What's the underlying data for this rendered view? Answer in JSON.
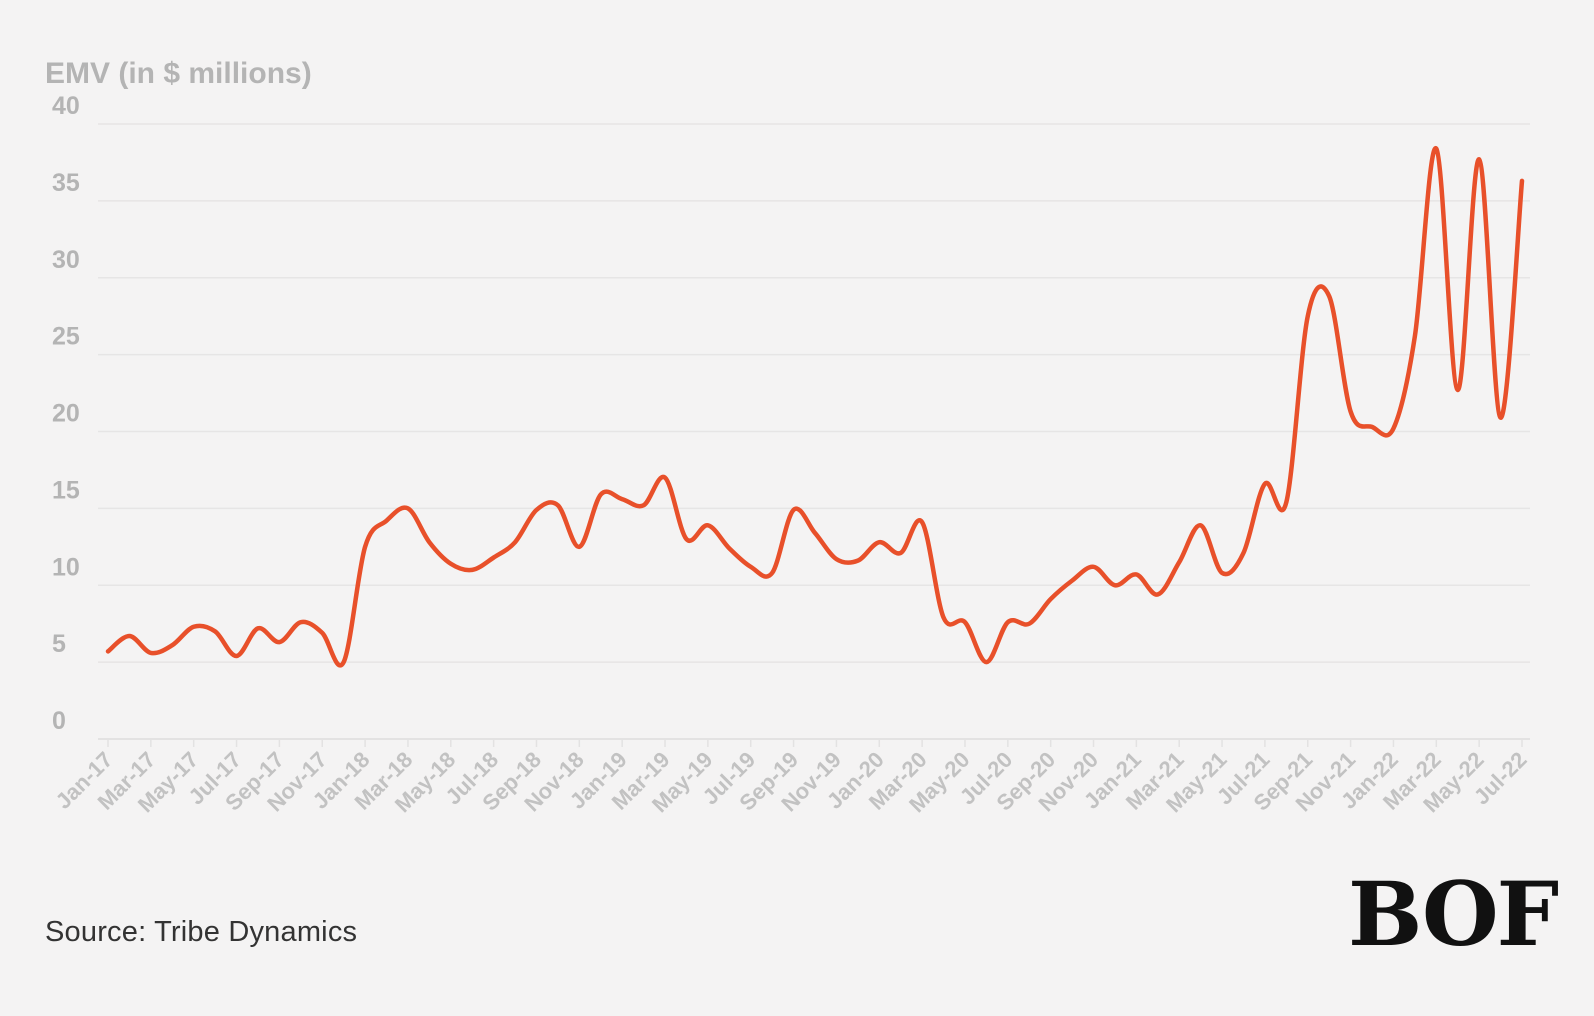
{
  "chart_data": {
    "type": "line",
    "ylabel": "EMV (in $ millions)",
    "ylim": [
      0,
      40
    ],
    "yticks": [
      0,
      5,
      10,
      15,
      20,
      25,
      30,
      35,
      40
    ],
    "grid": true,
    "x": [
      "Jan-17",
      "Feb-17",
      "Mar-17",
      "Apr-17",
      "May-17",
      "Jun-17",
      "Jul-17",
      "Aug-17",
      "Sep-17",
      "Oct-17",
      "Nov-17",
      "Dec-17",
      "Jan-18",
      "Feb-18",
      "Mar-18",
      "Apr-18",
      "May-18",
      "Jun-18",
      "Jul-18",
      "Aug-18",
      "Sep-18",
      "Oct-18",
      "Nov-18",
      "Dec-18",
      "Jan-19",
      "Feb-19",
      "Mar-19",
      "Apr-19",
      "May-19",
      "Jun-19",
      "Jul-19",
      "Aug-19",
      "Sep-19",
      "Oct-19",
      "Nov-19",
      "Dec-19",
      "Jan-20",
      "Feb-20",
      "Mar-20",
      "Apr-20",
      "May-20",
      "Jun-20",
      "Jul-20",
      "Aug-20",
      "Sep-20",
      "Oct-20",
      "Nov-20",
      "Dec-20",
      "Jan-21",
      "Feb-21",
      "Mar-21",
      "Apr-21",
      "May-21",
      "Jun-21",
      "Jul-21",
      "Aug-21",
      "Sep-21",
      "Oct-21",
      "Nov-21",
      "Dec-21",
      "Jan-22",
      "Feb-22",
      "Mar-22",
      "Apr-22",
      "May-22",
      "Jun-22",
      "Jul-22"
    ],
    "xtick_labels": [
      "Jan-17",
      "Mar-17",
      "May-17",
      "Jul-17",
      "Sep-17",
      "Nov-17",
      "Jan-18",
      "Mar-18",
      "May-18",
      "Jul-18",
      "Sep-18",
      "Nov-18",
      "Jan-19",
      "Mar-19",
      "May-19",
      "Jul-19",
      "Sep-19",
      "Nov-19",
      "Jan-20",
      "Mar-20",
      "May-20",
      "Jul-20",
      "Sep-20",
      "Nov-20",
      "Jan-21",
      "Mar-21",
      "May-21",
      "Jul-21",
      "Sep-21",
      "Nov-21",
      "Jan-22",
      "Mar-22",
      "May-22",
      "Jul-22"
    ],
    "series": [
      {
        "name": "EMV",
        "color": "#e8502a",
        "values": [
          5.7,
          6.7,
          5.6,
          6.1,
          7.3,
          7.0,
          5.4,
          7.2,
          6.3,
          7.6,
          6.9,
          5.0,
          12.5,
          14.2,
          15.0,
          12.8,
          11.4,
          11.0,
          11.8,
          12.8,
          14.9,
          15.2,
          12.5,
          15.9,
          15.6,
          15.2,
          17.0,
          13.0,
          13.9,
          12.4,
          11.2,
          10.8,
          14.9,
          13.4,
          11.7,
          11.6,
          12.8,
          12.1,
          14.1,
          7.9,
          7.6,
          5.0,
          7.6,
          7.5,
          9.1,
          10.3,
          11.2,
          10.0,
          10.7,
          9.4,
          11.5,
          13.9,
          10.8,
          12.1,
          16.6,
          15.4,
          27.5,
          28.8,
          21.3,
          20.3,
          20.2,
          26.2,
          38.4,
          22.7,
          37.7,
          20.9,
          36.3
        ]
      }
    ]
  },
  "footer": {
    "source": "Source: Tribe Dynamics",
    "logo_text": "BOF"
  }
}
